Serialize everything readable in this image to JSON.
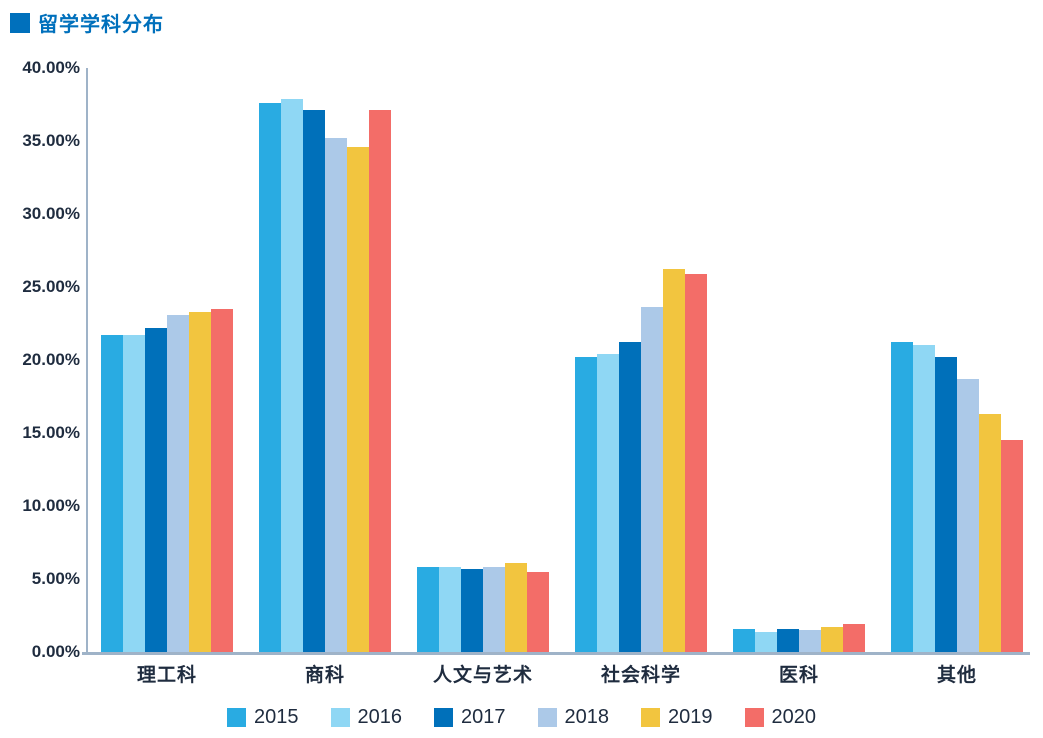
{
  "title": {
    "text": "留学学科分布",
    "accent_color": "#0070BC"
  },
  "chart_data": {
    "type": "bar",
    "title": "留学学科分布",
    "categories": [
      "理工科",
      "商科",
      "人文与艺术",
      "社会科学",
      "医科",
      "其他"
    ],
    "series": [
      {
        "name": "2015",
        "color": "#29ABE2",
        "values": [
          21.7,
          37.6,
          5.8,
          20.2,
          1.6,
          21.2
        ]
      },
      {
        "name": "2016",
        "color": "#8FD7F4",
        "values": [
          21.7,
          37.9,
          5.8,
          20.4,
          1.4,
          21.0
        ]
      },
      {
        "name": "2017",
        "color": "#0070BA",
        "values": [
          22.2,
          37.1,
          5.7,
          21.2,
          1.6,
          20.2
        ]
      },
      {
        "name": "2018",
        "color": "#ACC9E8",
        "values": [
          23.1,
          35.2,
          5.8,
          23.6,
          1.5,
          18.7
        ]
      },
      {
        "name": "2019",
        "color": "#F2C53F",
        "values": [
          23.3,
          34.6,
          6.1,
          26.2,
          1.7,
          16.3
        ]
      },
      {
        "name": "2020",
        "color": "#F36D68",
        "values": [
          23.5,
          37.1,
          5.5,
          25.9,
          1.9,
          14.5
        ]
      }
    ],
    "xlabel": "",
    "ylabel": "",
    "ylim": [
      0,
      40
    ],
    "y_axis": {
      "min": 0,
      "max": 40,
      "step": 5,
      "tick_labels": [
        "0.00%",
        "5.00%",
        "10.00%",
        "15.00%",
        "20.00%",
        "25.00%",
        "30.00%",
        "35.00%",
        "40.00%"
      ]
    },
    "grid": false,
    "legend_position": "bottom",
    "axis_line_color": "#9FB3C8",
    "text_color": "#1F2C3F"
  }
}
